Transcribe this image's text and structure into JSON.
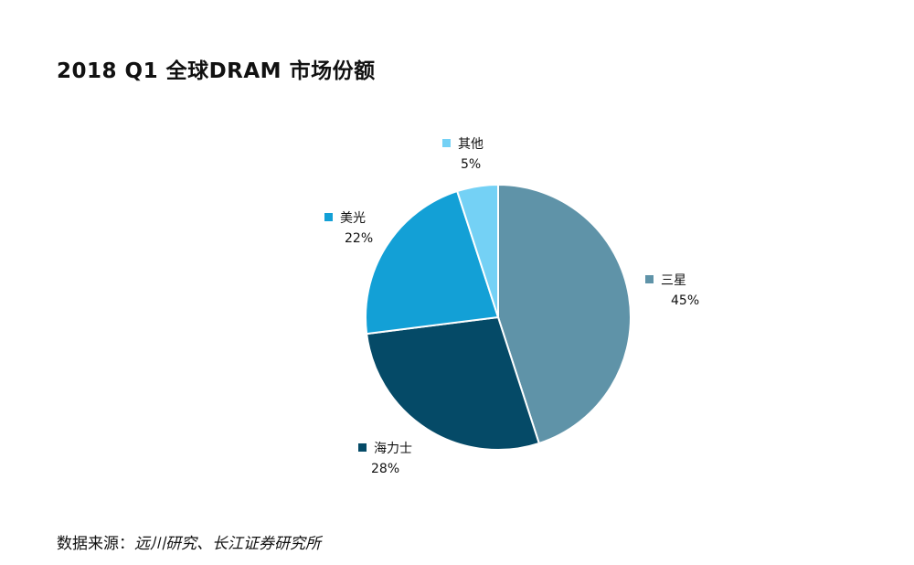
{
  "chart_data": {
    "type": "pie",
    "title": "2018 Q1 全球DRAM 市场份额",
    "slices": [
      {
        "name": "三星",
        "value": 45,
        "label": "45%",
        "color": "#5f93a8"
      },
      {
        "name": "海力士",
        "value": 28,
        "label": "28%",
        "color": "#054a67"
      },
      {
        "name": "美光",
        "value": 22,
        "label": "22%",
        "color": "#13a0d6"
      },
      {
        "name": "其他",
        "value": 5,
        "label": "5%",
        "color": "#74d1f5"
      }
    ],
    "start_angle_deg": 0,
    "direction": "clockwise",
    "legend": "labels next to slices"
  },
  "source": {
    "label": "数据来源：",
    "value": "远川研究、长江证券研究所"
  }
}
